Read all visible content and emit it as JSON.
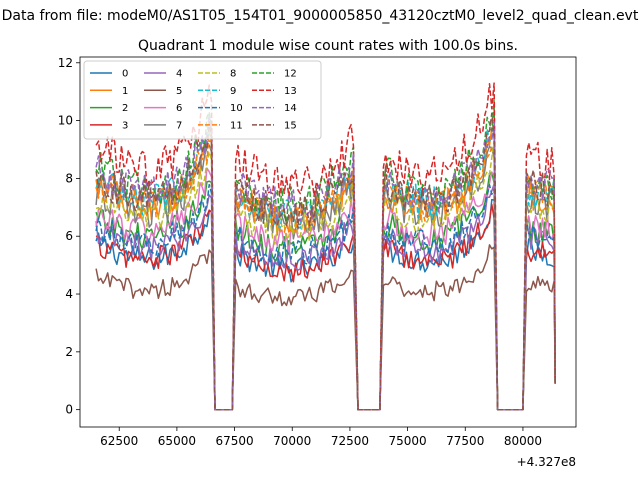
{
  "chart_data": {
    "type": "line",
    "suptitle": "Data from file: modeM0/AS1T05_154T01_9000005850_43120cztM0_level2_quad_clean.evt",
    "title": "Quadrant 1 module wise count rates with 100.0s bins.",
    "xlabel": "",
    "ylabel": "",
    "x_offset_label": "+4.327e8",
    "xlim": [
      60800,
      82300
    ],
    "ylim": [
      -0.6,
      12.2
    ],
    "xticks": [
      62500,
      65000,
      67500,
      70000,
      72500,
      75000,
      77500,
      80000
    ],
    "xtick_labels": [
      "62500",
      "65000",
      "67500",
      "70000",
      "72500",
      "75000",
      "77500",
      "80000"
    ],
    "yticks": [
      0,
      2,
      4,
      6,
      8,
      10,
      12
    ],
    "ytick_labels": [
      "0",
      "2",
      "4",
      "6",
      "8",
      "10",
      "12"
    ],
    "grid": false,
    "legend_position": "top-left",
    "segments": [
      {
        "start": 61500,
        "end": 66500,
        "gap_end": 67550
      },
      {
        "start": 67550,
        "end": 72700,
        "gap_end": 73950
      },
      {
        "start": 73950,
        "end": 78750,
        "gap_end": 80150
      },
      {
        "start": 80150,
        "end": 81350,
        "gap_end": null
      }
    ],
    "series": [
      {
        "name": "0",
        "style": "solid",
        "color": "#1f77b4",
        "level": 5.4
      },
      {
        "name": "1",
        "style": "solid",
        "color": "#ff7f0e",
        "level": 7.3
      },
      {
        "name": "2",
        "style": "solid",
        "color": "#2ca02c",
        "level": 6.2
      },
      {
        "name": "3",
        "style": "solid",
        "color": "#d62728",
        "level": 5.4
      },
      {
        "name": "4",
        "style": "solid",
        "color": "#9467bd",
        "level": 5.8
      },
      {
        "name": "5",
        "style": "solid",
        "color": "#8c564b",
        "level": 4.3
      },
      {
        "name": "6",
        "style": "solid",
        "color": "#e377c2",
        "level": 6.4
      },
      {
        "name": "7",
        "style": "solid",
        "color": "#7f7f7f",
        "level": 7.1
      },
      {
        "name": "8",
        "style": "dashed",
        "color": "#bcbd22",
        "level": 6.9
      },
      {
        "name": "9",
        "style": "dashed",
        "color": "#17becf",
        "level": 7.5
      },
      {
        "name": "10",
        "style": "dashed",
        "color": "#1f77b4",
        "level": 6.0
      },
      {
        "name": "11",
        "style": "dashed",
        "color": "#ff7f0e",
        "level": 7.4
      },
      {
        "name": "12",
        "style": "dashed",
        "color": "#2ca02c",
        "level": 7.9
      },
      {
        "name": "13",
        "style": "dashed",
        "color": "#d62728",
        "level": 8.6
      },
      {
        "name": "14",
        "style": "dashed",
        "color": "#9467bd",
        "level": 7.8
      },
      {
        "name": "15",
        "style": "dashed",
        "color": "#8c564b",
        "level": 7.6
      }
    ]
  }
}
